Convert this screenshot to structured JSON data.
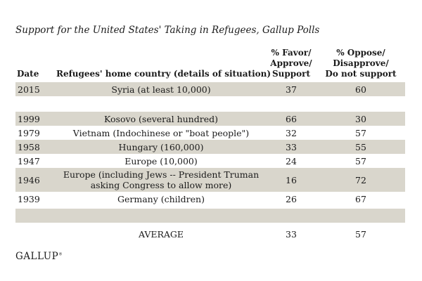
{
  "page": {
    "title": "Support for the United States' Taking in Refugees, Gallup Polls"
  },
  "table": {
    "headers": {
      "date": "Date",
      "country": "Refugees' home country (details of situation)",
      "favor": "% Favor/\nApprove/\nSupport",
      "oppose": "% Oppose/\nDisapprove/\nDo not support"
    },
    "rows": [
      {
        "type": "data",
        "shaded": true,
        "date": "2015",
        "country": "Syria (at least 10,000)",
        "favor": "37",
        "oppose": "60"
      },
      {
        "type": "spacer-white"
      },
      {
        "type": "data",
        "shaded": true,
        "date": "1999",
        "country": "Kosovo (several hundred)",
        "favor": "66",
        "oppose": "30"
      },
      {
        "type": "data",
        "shaded": false,
        "date": "1979",
        "country": "Vietnam (Indochinese or \"boat people\")",
        "favor": "32",
        "oppose": "57"
      },
      {
        "type": "data",
        "shaded": true,
        "date": "1958",
        "country": "Hungary (160,000)",
        "favor": "33",
        "oppose": "55"
      },
      {
        "type": "data",
        "shaded": false,
        "date": "1947",
        "country": "Europe (10,000)",
        "favor": "24",
        "oppose": "57"
      },
      {
        "type": "data",
        "shaded": true,
        "date": "1946",
        "country": "Europe (including Jews -- President Truman\nasking Congress to allow more)",
        "favor": "16",
        "oppose": "72"
      },
      {
        "type": "data",
        "shaded": false,
        "date": "1939",
        "country": "Germany (children)",
        "favor": "26",
        "oppose": "67"
      },
      {
        "type": "spacer-shaded"
      },
      {
        "type": "data",
        "shaded": false,
        "average": true,
        "date": "",
        "country": "AVERAGE",
        "favor": "33",
        "oppose": "57"
      }
    ]
  },
  "footer": {
    "logo": "GALLUP",
    "registered": "®"
  },
  "colors": {
    "row_shaded": "#d9d6cc",
    "background": "#ffffff",
    "text": "#1b1b1b"
  },
  "chart_data": {
    "type": "table",
    "title": "Support for the United States' Taking in Refugees, Gallup Polls",
    "columns": [
      "Date",
      "Refugees' home country (details of situation)",
      "% Favor/Approve/Support",
      "% Oppose/Disapprove/Do not support"
    ],
    "rows": [
      {
        "date": "2015",
        "country": "Syria (at least 10,000)",
        "favor": 37,
        "oppose": 60
      },
      {
        "date": "1999",
        "country": "Kosovo (several hundred)",
        "favor": 66,
        "oppose": 30
      },
      {
        "date": "1979",
        "country": "Vietnam (Indochinese or \"boat people\")",
        "favor": 32,
        "oppose": 57
      },
      {
        "date": "1958",
        "country": "Hungary (160,000)",
        "favor": 33,
        "oppose": 55
      },
      {
        "date": "1947",
        "country": "Europe (10,000)",
        "favor": 24,
        "oppose": 57
      },
      {
        "date": "1946",
        "country": "Europe (including Jews -- President Truman asking Congress to allow more)",
        "favor": 16,
        "oppose": 72
      },
      {
        "date": "1939",
        "country": "Germany (children)",
        "favor": 26,
        "oppose": 67
      }
    ],
    "summary_row": {
      "date": "AVERAGE",
      "favor": 33,
      "oppose": 57
    },
    "source": "GALLUP"
  }
}
